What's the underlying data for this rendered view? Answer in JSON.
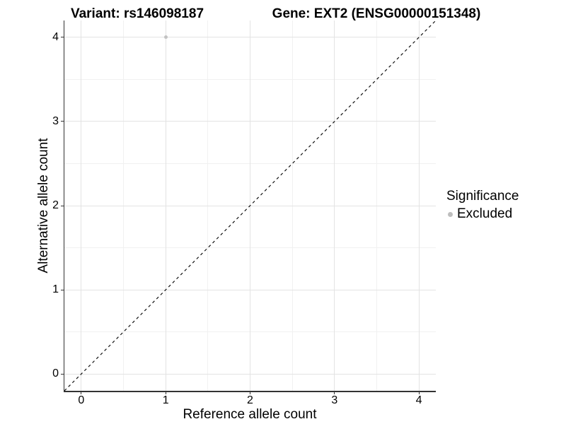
{
  "titles": {
    "variant": "Variant: rs146098187",
    "gene": "Gene: EXT2 (ENSG00000151348)"
  },
  "axes": {
    "x_label": "Reference allele count",
    "y_label": "Alternative allele count"
  },
  "legend": {
    "title": "Significance",
    "items": [
      {
        "label": "Excluded",
        "color": "#bebebe"
      }
    ]
  },
  "colors": {
    "background": "#ffffff",
    "major_grid": "#e3e3e3",
    "minor_grid": "#f1f1f1",
    "axis_line": "#333333",
    "reference_line": "#111111",
    "point": "#c2c2c2",
    "text": "#000000"
  },
  "chart_data": {
    "type": "scatter",
    "title": "Variant: rs146098187 — Gene: EXT2 (ENSG00000151348)",
    "xlabel": "Reference allele count",
    "ylabel": "Alternative allele count",
    "xlim": [
      -0.2,
      4.2
    ],
    "ylim": [
      -0.2,
      4.2
    ],
    "x_ticks": [
      0,
      1,
      2,
      3,
      4
    ],
    "y_ticks": [
      0,
      1,
      2,
      3,
      4
    ],
    "x_minor": [
      0.5,
      1.5,
      2.5,
      3.5
    ],
    "y_minor": [
      0.5,
      1.5,
      2.5,
      3.5
    ],
    "grid": true,
    "legend_position": "right",
    "series": [
      {
        "name": "Excluded",
        "color": "#c2c2c2",
        "points": [
          {
            "x": 1,
            "y": 4
          }
        ]
      }
    ],
    "reference_line": {
      "type": "identity",
      "slope": 1,
      "intercept": 0,
      "style": "dashed",
      "color": "#111111"
    }
  }
}
